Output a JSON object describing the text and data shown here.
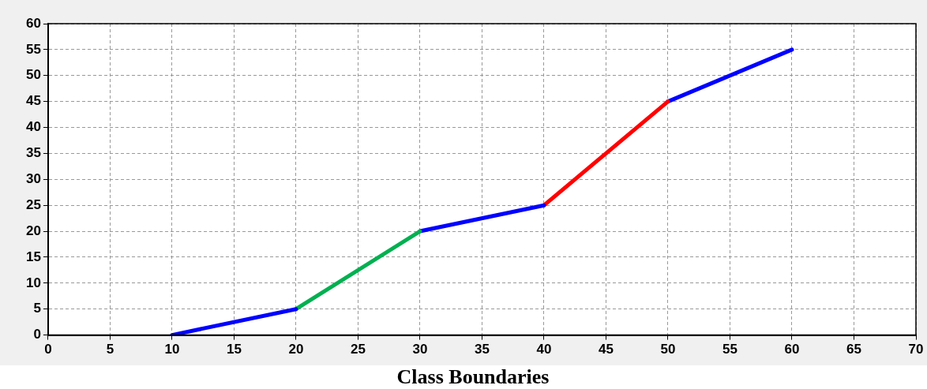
{
  "chart_data": {
    "type": "line",
    "xlabel": "Class Boundaries",
    "xlim": [
      0,
      70
    ],
    "xticks": [
      0,
      5,
      10,
      15,
      20,
      25,
      30,
      35,
      40,
      45,
      50,
      55,
      60,
      65,
      70
    ],
    "ylim": [
      0,
      60
    ],
    "yticks": [
      0,
      5,
      10,
      15,
      20,
      25,
      30,
      35,
      40,
      45,
      50,
      55,
      60
    ],
    "grid": true,
    "legend": false,
    "marker": "none",
    "line_style": "solid",
    "series": [
      {
        "color": "#0000ff",
        "x": [
          10,
          20
        ],
        "values": [
          0,
          5
        ]
      },
      {
        "color": "#00b050",
        "x": [
          20,
          30
        ],
        "values": [
          5,
          20
        ]
      },
      {
        "color": "#0000ff",
        "x": [
          30,
          40
        ],
        "values": [
          20,
          25
        ]
      },
      {
        "color": "#ff0000",
        "x": [
          40,
          50
        ],
        "values": [
          25,
          45
        ]
      },
      {
        "color": "#0000ff",
        "x": [
          50,
          60
        ],
        "values": [
          45,
          55
        ]
      }
    ]
  }
}
